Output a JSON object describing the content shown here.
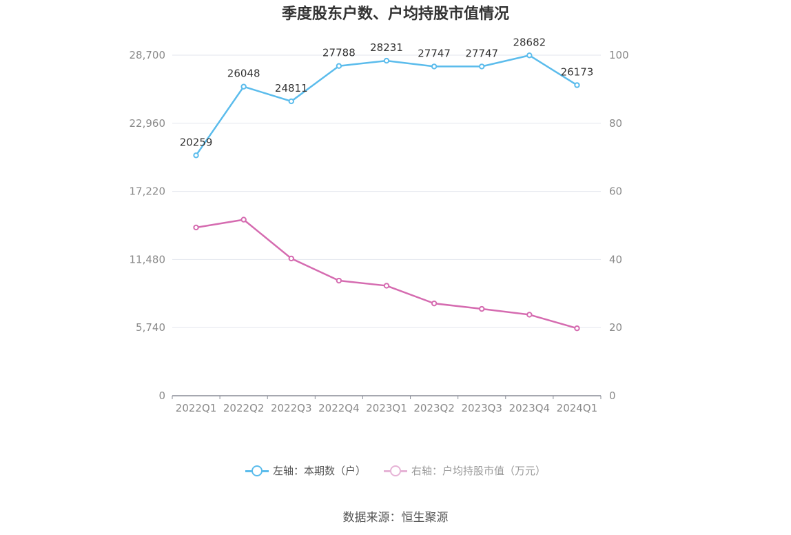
{
  "title": "季度股东户数、户均持股市值情况",
  "source": "数据来源：恒生聚源",
  "colors": {
    "left_series": "#5bbcec",
    "right_series": "#d56bb0",
    "grid": "#e3e6ee",
    "axis_text": "#8a8a8a"
  },
  "chart_data": {
    "type": "line",
    "categories": [
      "2022Q1",
      "2022Q2",
      "2022Q3",
      "2022Q4",
      "2023Q1",
      "2023Q2",
      "2023Q3",
      "2023Q4",
      "2024Q1"
    ],
    "left_axis": {
      "ticks": [
        "0",
        "5,740",
        "11,480",
        "17,220",
        "22,960",
        "28,700"
      ],
      "ylim": [
        0,
        28700
      ]
    },
    "right_axis": {
      "ticks": [
        "0",
        "20",
        "40",
        "60",
        "80",
        "100"
      ],
      "ylim": [
        0,
        100
      ]
    },
    "series": [
      {
        "name": "左轴：本期数（户）",
        "axis": "left",
        "values": [
          20259,
          26048,
          24811,
          27788,
          28231,
          27747,
          27747,
          28682,
          26173
        ],
        "labels": [
          "20259",
          "26048",
          "24811",
          "27788",
          "28231",
          "27747",
          "27747",
          "28682",
          "26173"
        ]
      },
      {
        "name": "右轴：户均持股市值（万元）",
        "axis": "right",
        "values": [
          49.4,
          51.7,
          40.3,
          33.8,
          32.3,
          27.1,
          25.5,
          23.8,
          19.8
        ]
      }
    ],
    "legend": "bottom-center",
    "grid": true
  }
}
